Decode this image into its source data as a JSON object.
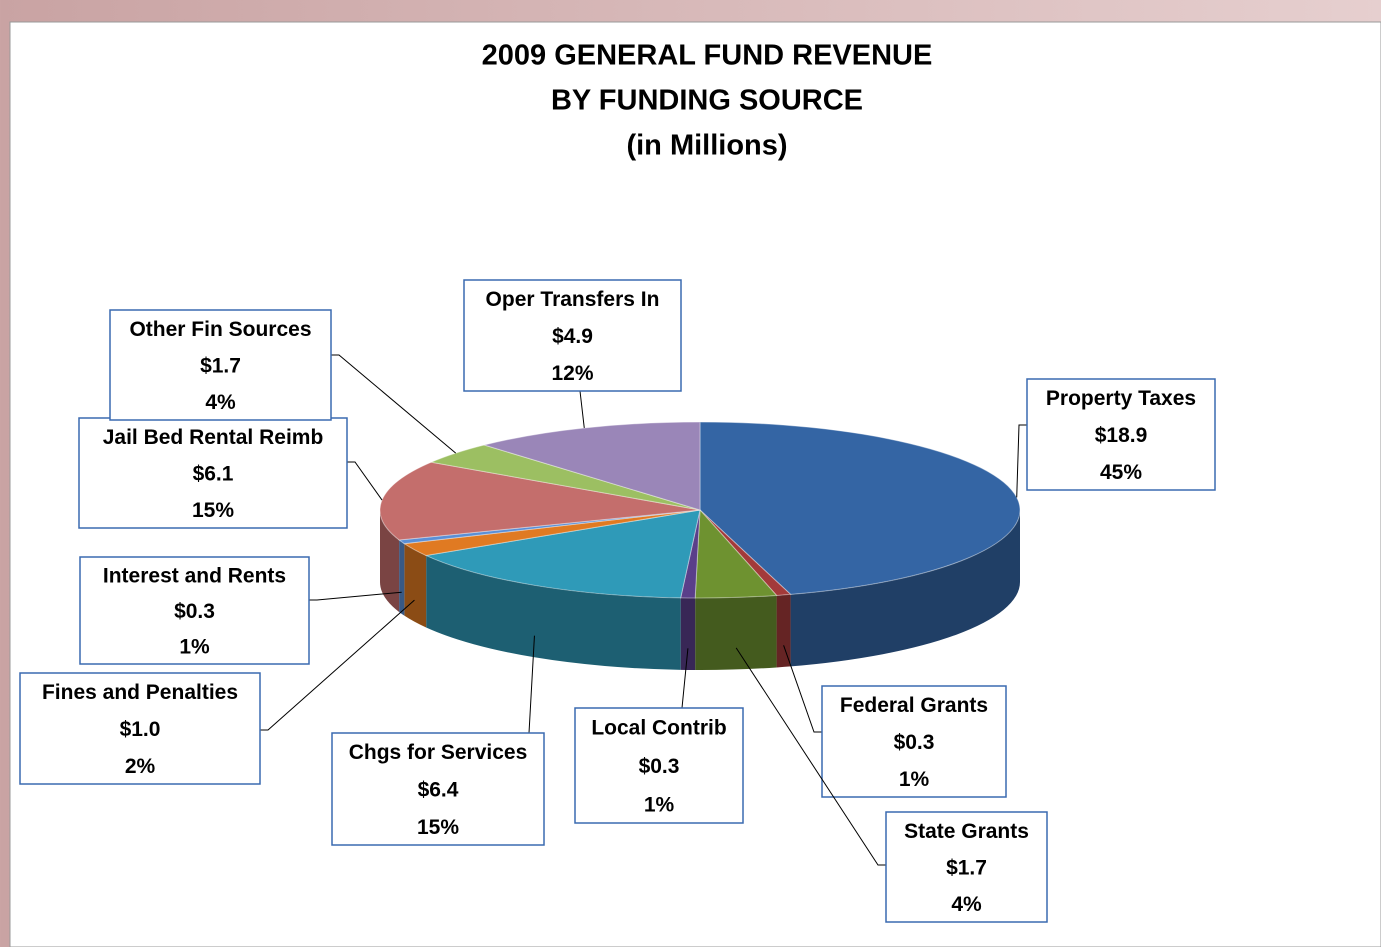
{
  "chart_data": {
    "type": "pie3d",
    "title": [
      "2009 GENERAL FUND REVENUE",
      "BY FUNDING SOURCE"
    ],
    "subtitle": "(in Millions)",
    "categories": [
      "Property Taxes",
      "Federal Grants",
      "State Grants",
      "Local Contrib",
      "Chgs for Services",
      "Fines and Penalties",
      "Interest and Rents",
      "Jail Bed Rental Reimb",
      "Other Fin Sources",
      "Oper Transfers In"
    ],
    "values": [
      18.9,
      0.3,
      1.7,
      0.3,
      6.4,
      1.0,
      0.3,
      6.1,
      1.7,
      4.9
    ],
    "value_labels": [
      "$18.9",
      "$0.3",
      "$1.7",
      "$0.3",
      "$6.4",
      "$1.0",
      "$0.3",
      "$6.1",
      "$1.7",
      "$4.9"
    ],
    "percent_labels": [
      "45%",
      "1%",
      "4%",
      "1%",
      "15%",
      "2%",
      "1%",
      "15%",
      "4%",
      "12%"
    ],
    "colors": [
      "#3465a4",
      "#a33a3a",
      "#6e9230",
      "#5a3f8a",
      "#2f9ab8",
      "#e07a22",
      "#5a8fd6",
      "#c46e6c",
      "#9cbf62",
      "#9a86b8"
    ]
  }
}
